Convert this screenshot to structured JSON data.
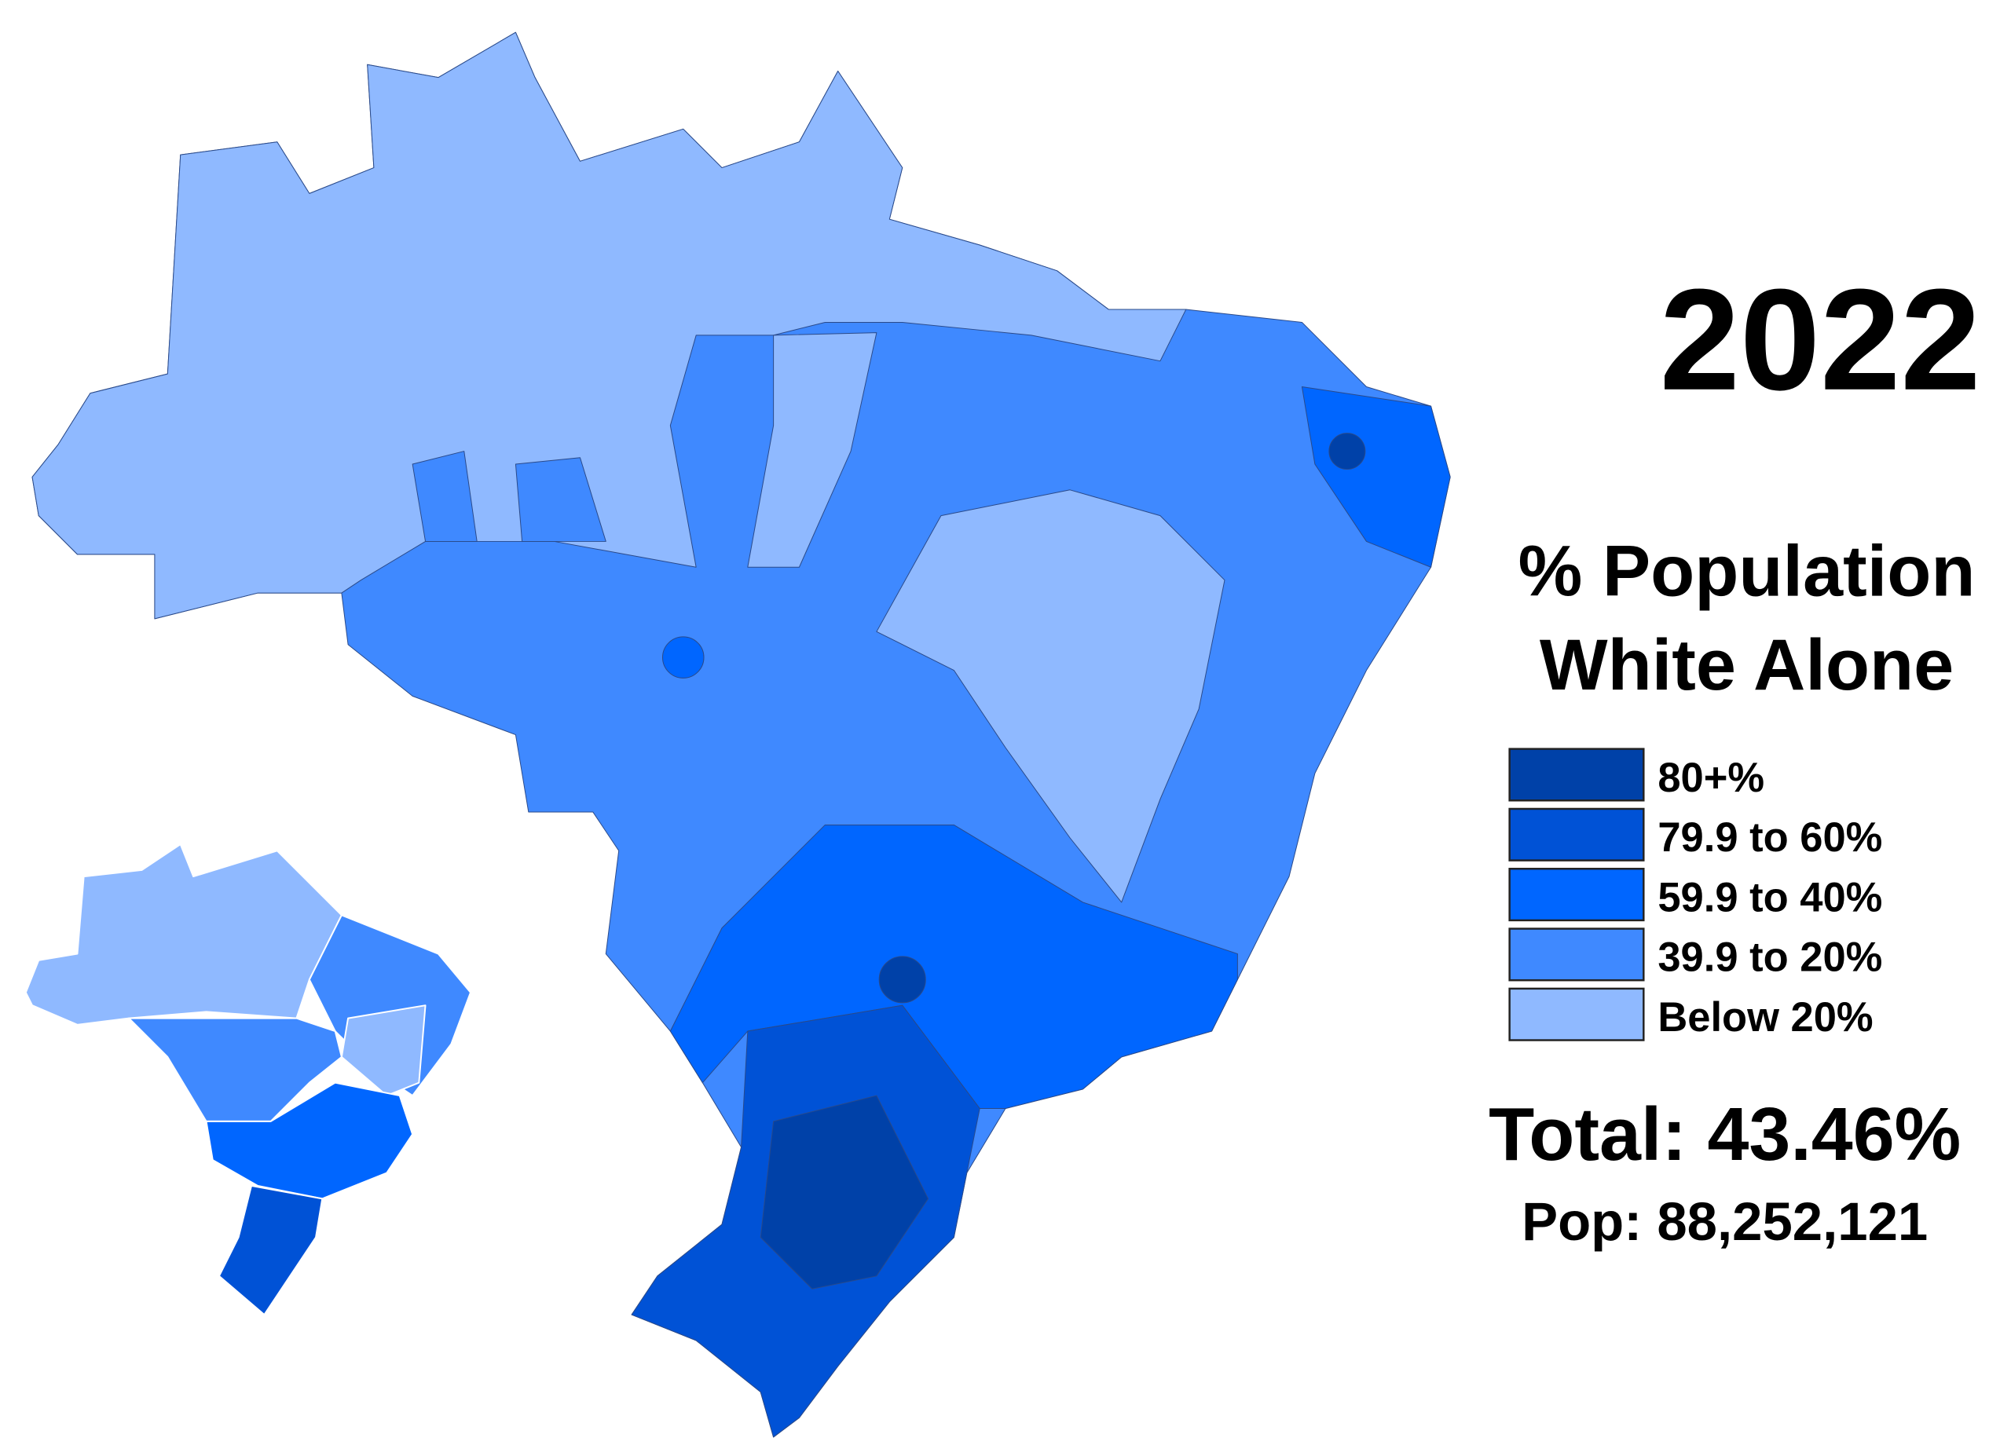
{
  "year": "2022",
  "title_lines": [
    "% Population",
    "White Alone"
  ],
  "legend": [
    {
      "label": "80+%",
      "color": "#0041a8"
    },
    {
      "label": "79.9 to 60%",
      "color": "#0052d6"
    },
    {
      "label": "59.9 to 40%",
      "color": "#0066ff"
    },
    {
      "label": "39.9 to 20%",
      "color": "#3f89ff"
    },
    {
      "label": "Below 20%",
      "color": "#8fb9ff"
    }
  ],
  "total": "Total: 43.46%",
  "population": "Pop: 88,252,121"
}
